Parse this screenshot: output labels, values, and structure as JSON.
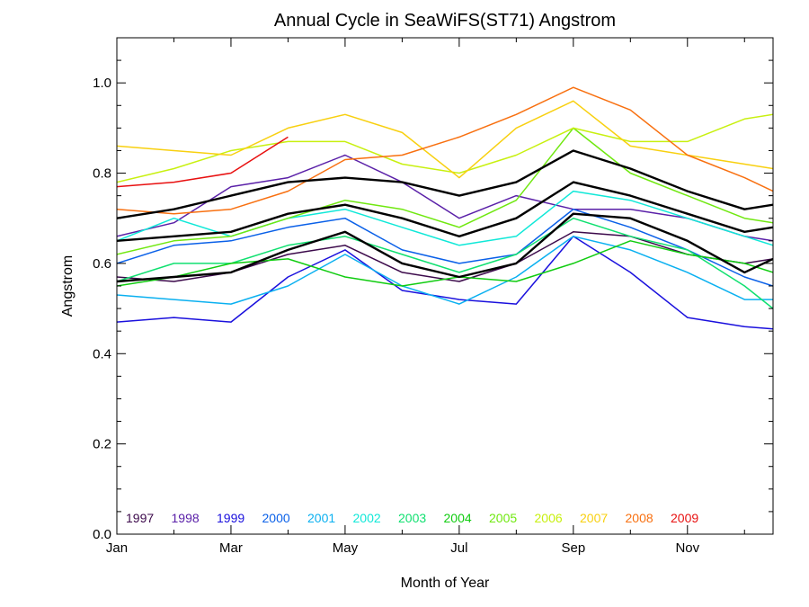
{
  "chart_data": {
    "type": "line",
    "title": "Annual Cycle in SeaWiFS(ST71) Angstrom",
    "xlabel": "Month of Year",
    "ylabel": "Angstrom",
    "xlim": [
      1,
      12.5
    ],
    "ylim": [
      0.0,
      1.1
    ],
    "x": [
      1,
      2,
      3,
      4,
      5,
      6,
      7,
      8,
      9,
      10,
      11,
      12,
      12.5
    ],
    "xticks": [
      {
        "value": 1,
        "label": "Jan"
      },
      {
        "value": 3,
        "label": "Mar"
      },
      {
        "value": 5,
        "label": "May"
      },
      {
        "value": 7,
        "label": "Jul"
      },
      {
        "value": 9,
        "label": "Sep"
      },
      {
        "value": 11,
        "label": "Nov"
      }
    ],
    "yticks": [
      {
        "value": 0.0,
        "label": "0.0"
      },
      {
        "value": 0.2,
        "label": "0.2"
      },
      {
        "value": 0.4,
        "label": "0.4"
      },
      {
        "value": 0.6,
        "label": "0.6"
      },
      {
        "value": 0.8,
        "label": "0.8"
      },
      {
        "value": 1.0,
        "label": "1.0"
      }
    ],
    "grid": false,
    "legend_position": "bottom-left inside plot",
    "series": [
      {
        "name": "1997",
        "color": "#3c0a4b",
        "values": [
          0.57,
          0.56,
          0.58,
          0.62,
          0.64,
          0.58,
          0.56,
          0.6,
          0.67,
          0.66,
          0.62,
          0.6,
          0.61
        ]
      },
      {
        "name": "1998",
        "color": "#5a20a8",
        "values": [
          0.66,
          0.69,
          0.77,
          0.79,
          0.84,
          0.78,
          0.7,
          0.75,
          0.72,
          0.72,
          0.7,
          0.66,
          0.65
        ]
      },
      {
        "name": "1999",
        "color": "#1a10dd",
        "values": [
          0.47,
          0.48,
          0.47,
          0.57,
          0.63,
          0.54,
          0.52,
          0.51,
          0.66,
          0.58,
          0.48,
          0.46,
          0.455
        ]
      },
      {
        "name": "2000",
        "color": "#0a60e8",
        "values": [
          0.6,
          0.64,
          0.65,
          0.68,
          0.7,
          0.63,
          0.6,
          0.62,
          0.72,
          0.68,
          0.63,
          0.57,
          0.55
        ]
      },
      {
        "name": "2001",
        "color": "#0ab0f0",
        "values": [
          0.53,
          0.52,
          0.51,
          0.55,
          0.62,
          0.55,
          0.51,
          0.57,
          0.66,
          0.63,
          0.58,
          0.52,
          0.52
        ]
      },
      {
        "name": "2002",
        "color": "#10e8d8",
        "values": [
          0.65,
          0.7,
          0.66,
          0.7,
          0.72,
          0.68,
          0.64,
          0.66,
          0.76,
          0.74,
          0.7,
          0.66,
          0.64
        ]
      },
      {
        "name": "2003",
        "color": "#10e070",
        "values": [
          0.56,
          0.6,
          0.6,
          0.64,
          0.66,
          0.62,
          0.58,
          0.62,
          0.7,
          0.66,
          0.63,
          0.55,
          0.5
        ]
      },
      {
        "name": "2004",
        "color": "#10cc10",
        "values": [
          0.55,
          0.57,
          0.6,
          0.61,
          0.57,
          0.55,
          0.57,
          0.56,
          0.6,
          0.65,
          0.62,
          0.6,
          0.58
        ]
      },
      {
        "name": "2005",
        "color": "#70e810",
        "values": [
          0.62,
          0.65,
          0.66,
          0.7,
          0.74,
          0.72,
          0.68,
          0.74,
          0.9,
          0.8,
          0.75,
          0.7,
          0.69
        ]
      },
      {
        "name": "2006",
        "color": "#c8f010",
        "values": [
          0.78,
          0.81,
          0.85,
          0.87,
          0.87,
          0.82,
          0.8,
          0.84,
          0.9,
          0.87,
          0.87,
          0.92,
          0.93
        ]
      },
      {
        "name": "2007",
        "color": "#f8d010",
        "values": [
          0.86,
          0.85,
          0.84,
          0.9,
          0.93,
          0.89,
          0.79,
          0.9,
          0.96,
          0.86,
          0.84,
          0.82,
          0.81
        ]
      },
      {
        "name": "2008",
        "color": "#f87010",
        "values": [
          0.72,
          0.71,
          0.72,
          0.76,
          0.83,
          0.84,
          0.88,
          0.93,
          0.99,
          0.94,
          0.84,
          0.79,
          0.76
        ]
      },
      {
        "name": "2009",
        "color": "#e81010",
        "values": [
          0.77,
          0.78,
          0.8,
          0.88,
          null,
          null,
          null,
          null,
          null,
          null,
          null,
          null,
          null
        ]
      },
      {
        "name": "",
        "color": "#000000",
        "width": 2.4,
        "values": [
          0.7,
          0.72,
          0.75,
          0.78,
          0.79,
          0.78,
          0.75,
          0.78,
          0.85,
          0.81,
          0.76,
          0.72,
          0.73
        ]
      },
      {
        "name": "",
        "color": "#000000",
        "width": 2.4,
        "values": [
          0.65,
          0.66,
          0.67,
          0.71,
          0.73,
          0.7,
          0.66,
          0.7,
          0.78,
          0.75,
          0.71,
          0.67,
          0.68
        ]
      },
      {
        "name": "",
        "color": "#000000",
        "width": 2.4,
        "values": [
          0.56,
          0.57,
          0.58,
          0.63,
          0.67,
          0.6,
          0.57,
          0.6,
          0.71,
          0.7,
          0.65,
          0.58,
          0.61
        ]
      }
    ]
  }
}
